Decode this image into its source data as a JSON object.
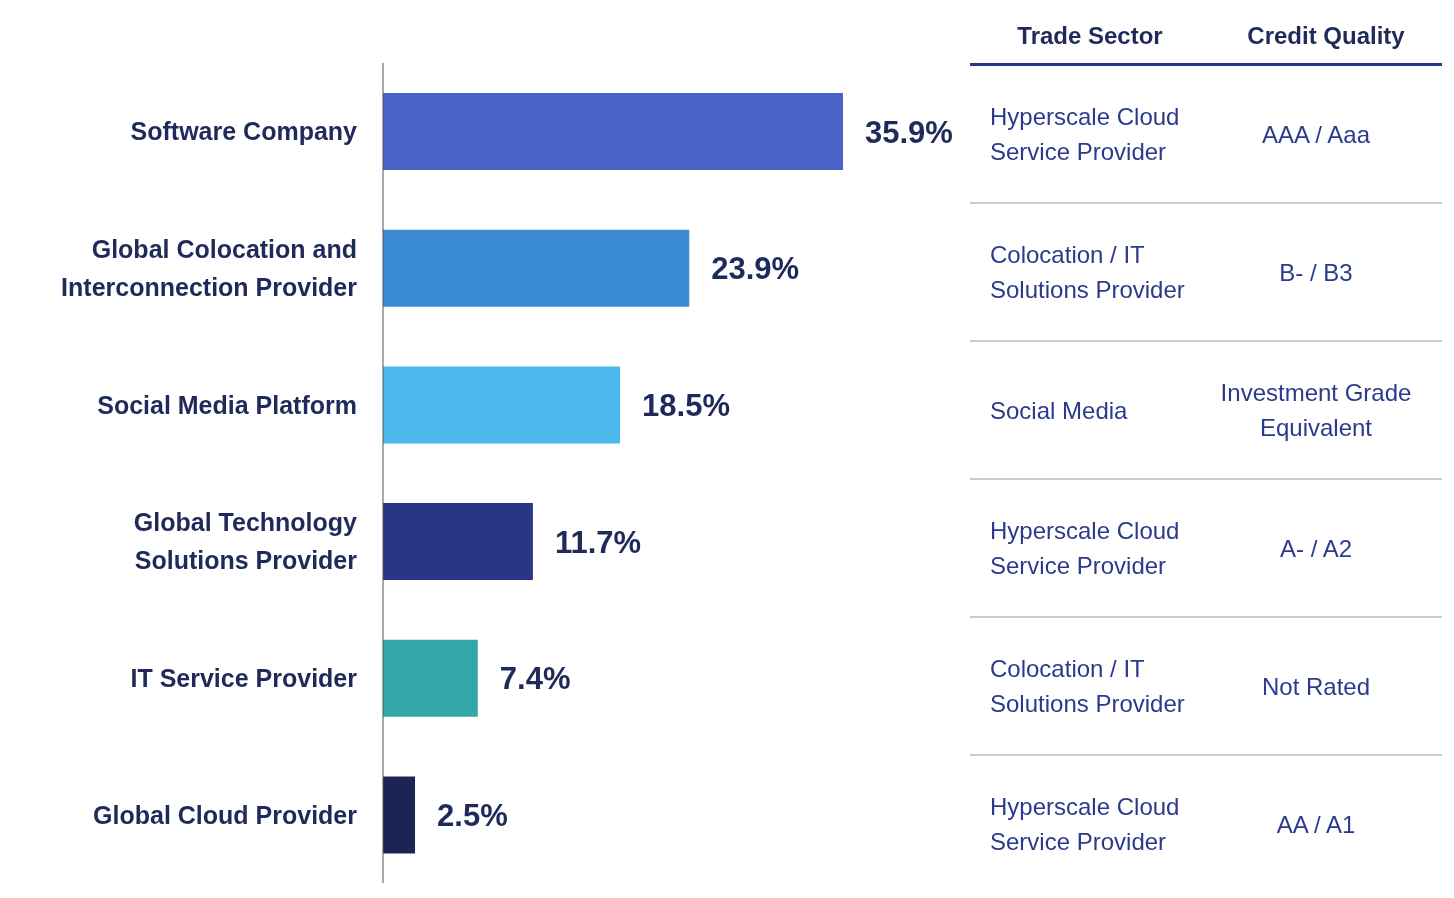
{
  "chart_data": {
    "type": "bar",
    "orientation": "horizontal",
    "categories": [
      "Software Company",
      "Global Colocation and Interconnection Provider",
      "Social Media Platform",
      "Global Technology Solutions Provider",
      "IT Service Provider",
      "Global Cloud Provider"
    ],
    "values": [
      35.9,
      23.9,
      18.5,
      11.7,
      7.4,
      2.5
    ],
    "colors": [
      "#4a63c8",
      "#3a8ad6",
      "#4db8ec",
      "#2b3585",
      "#33a8a8",
      "#1c2456"
    ],
    "value_labels": [
      "35.9%",
      "23.9%",
      "18.5%",
      "11.7%",
      "7.4%",
      "2.5%"
    ],
    "grid": false,
    "legend": false,
    "annotations": [
      "Trade Sector",
      "Credit Quality",
      "Hyperscale Cloud Service Provider",
      "AAA / Aaa",
      "Colocation / IT Solutions Provider",
      "B- / B3",
      "Social Media",
      "Investment Grade Equivalent",
      "Hyperscale Cloud Service Provider",
      "A- / A2",
      "Colocation / IT Solutions Provider",
      "Not Rated",
      "Hyperscale Cloud Service Provider",
      "AA / A1"
    ]
  }
}
